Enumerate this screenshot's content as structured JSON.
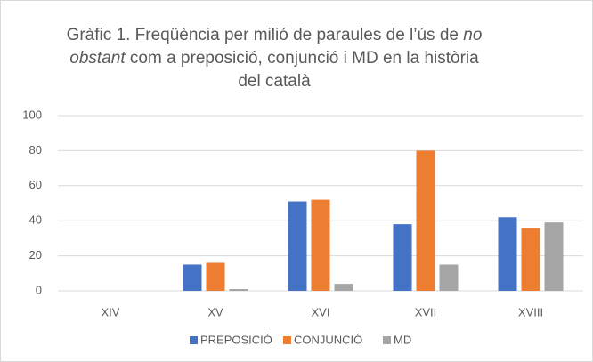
{
  "chart_data": {
    "type": "bar",
    "title": [
      [
        {
          "text": "Gràfic 1. Freqüència per milió de paraules de l’ús de "
        },
        {
          "text": "no",
          "italic": true
        }
      ],
      [
        {
          "text": "obstant",
          "italic": true
        },
        {
          "text": " com a preposició, conjunció i MD en la història"
        }
      ],
      [
        {
          "text": "del català"
        }
      ]
    ],
    "categories": [
      "XIV",
      "XV",
      "XVI",
      "XVII",
      "XVIII"
    ],
    "series": [
      {
        "name": "PREPOSICIÓ",
        "color": "#4472c4",
        "values": [
          0,
          15,
          51,
          38,
          42
        ]
      },
      {
        "name": "CONJUNCIÓ",
        "color": "#ed7d31",
        "values": [
          0,
          16,
          52,
          80,
          36
        ]
      },
      {
        "name": "MD",
        "color": "#a5a5a5",
        "values": [
          0,
          1,
          4,
          15,
          39
        ]
      }
    ],
    "ylim": [
      0,
      100
    ],
    "yticks": [
      0,
      20,
      40,
      60,
      80,
      100
    ],
    "grid": true,
    "legend": "bottom"
  }
}
